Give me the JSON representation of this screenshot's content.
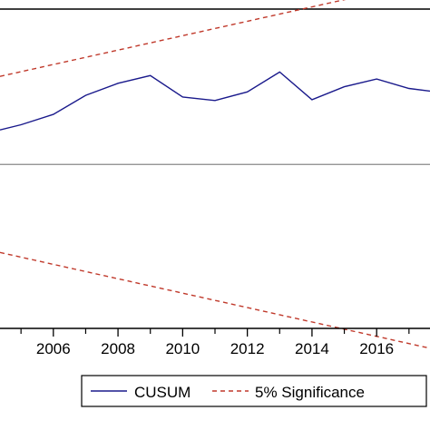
{
  "chart_data": {
    "type": "line",
    "x_ticks": [
      2006,
      2008,
      2010,
      2012,
      2014,
      2016
    ],
    "xlim": [
      2004.35,
      2017.65
    ],
    "ylim": [
      -1.9,
      1.8
    ],
    "grid": false,
    "legend": "bottom-center",
    "zero_line": 0,
    "series": [
      {
        "name": "CUSUM",
        "color": "#1a1a8c",
        "style": "solid",
        "x": [
          2004.35,
          2005,
          2006,
          2007,
          2008,
          2009,
          2010,
          2011,
          2012,
          2013,
          2014,
          2015,
          2016,
          2017,
          2017.65
        ],
        "y": [
          0.4,
          0.46,
          0.58,
          0.8,
          0.94,
          1.03,
          0.78,
          0.74,
          0.84,
          1.07,
          0.75,
          0.9,
          0.99,
          0.88,
          0.85
        ]
      },
      {
        "name": "5% Significance",
        "color": "#c0392b",
        "style": "dashed",
        "x": [
          2004.35,
          2017.65
        ],
        "y": [
          1.02,
          2.13
        ]
      },
      {
        "name": "5% Significance",
        "color": "#c0392b",
        "style": "dashed",
        "x": [
          2004.35,
          2017.65
        ],
        "y": [
          -1.02,
          -2.13
        ]
      }
    ],
    "legend_entries": [
      "CUSUM",
      "5% Significance"
    ]
  }
}
